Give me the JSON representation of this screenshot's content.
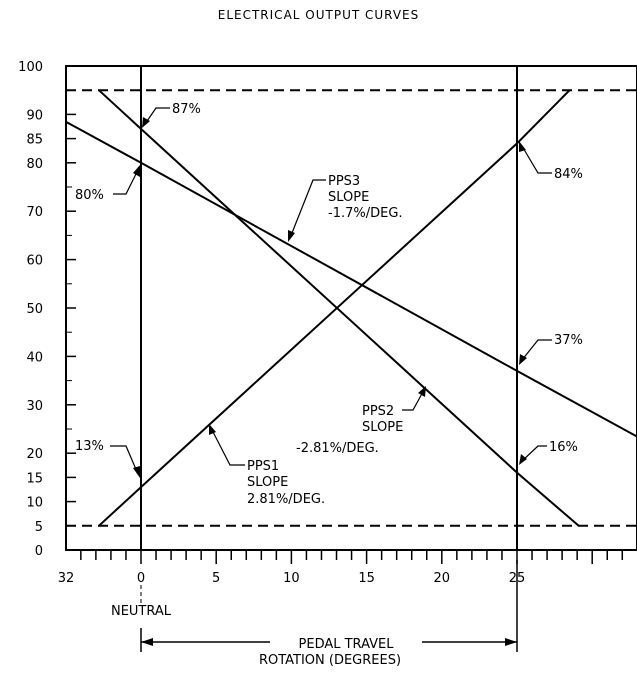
{
  "chart_data": {
    "type": "line",
    "title": "ELECTRICAL OUTPUT CURVES",
    "x_ticks": [
      0,
      5,
      10,
      15,
      20,
      25
    ],
    "x_tick_labels": [
      "0",
      "5",
      "10",
      "15",
      "20",
      "25"
    ],
    "x_left_label": "32",
    "x_neutral_label": "NEUTRAL",
    "x_axis_label_line1": "PEDAL TRAVEL",
    "x_axis_label_line2": "ROTATION (DEGREES)",
    "y_ticks": [
      0,
      5,
      10,
      15,
      20,
      30,
      40,
      50,
      60,
      70,
      80,
      85,
      90,
      100
    ],
    "y_tick_labels": [
      "0",
      "5",
      "10",
      "15",
      "20",
      "30",
      "40",
      "50",
      "60",
      "70",
      "80",
      "85",
      "90",
      "100"
    ],
    "xlim": [
      -5,
      33
    ],
    "ylim": [
      0,
      100
    ],
    "limit_lines": [
      5,
      95
    ],
    "series": [
      {
        "name": "PPS1",
        "slope_line1": "SLOPE",
        "slope_line2": "2.81%/DEG.",
        "x": [
          -2.8,
          0,
          25,
          28.5
        ],
        "y": [
          5,
          13,
          84,
          95
        ]
      },
      {
        "name": "PPS2",
        "slope_line1": "SLOPE",
        "slope_line2": "-2.81%/DEG.",
        "x": [
          -2.8,
          0,
          25,
          29.1
        ],
        "y": [
          95,
          87,
          16,
          5
        ]
      },
      {
        "name": "PPS3",
        "slope_line1": "SLOPE",
        "slope_line2": "-1.7%/DEG.",
        "x": [
          -5,
          0,
          25,
          33
        ],
        "y": [
          88.5,
          80,
          37,
          23.4
        ]
      }
    ],
    "annotations": {
      "pps1_at_0": "13%",
      "pps2_at_0": "87%",
      "pps3_at_0": "80%",
      "pps1_at_25": "84%",
      "pps3_at_25": "37%",
      "pps2_at_25": "16%"
    },
    "grid": false,
    "legend": "none"
  }
}
